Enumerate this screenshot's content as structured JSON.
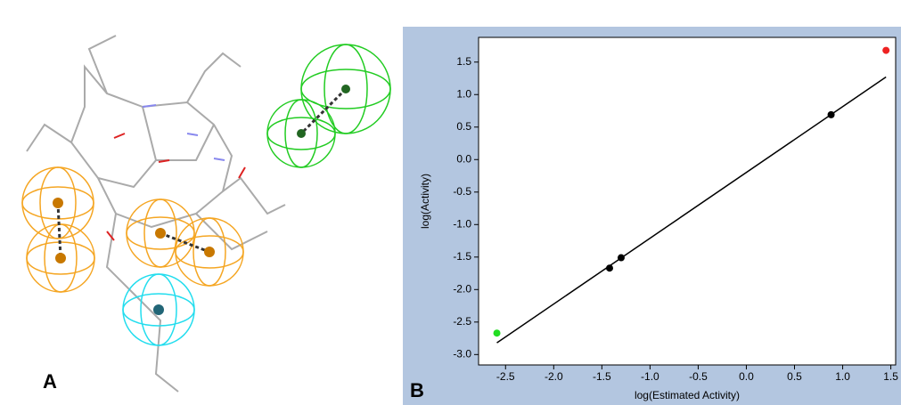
{
  "panel_labels": {
    "a": "A",
    "b": "B"
  },
  "chart_data": {
    "type": "scatter",
    "xlabel": "log(Estimated Activity)",
    "ylabel": "log(Activity)",
    "x": [
      -2.59,
      -1.42,
      -1.3,
      0.88,
      1.45
    ],
    "y": [
      -2.67,
      -1.67,
      -1.51,
      0.69,
      1.68
    ],
    "colors": [
      "#22dd22",
      "#000000",
      "#000000",
      "#000000",
      "#ee2222"
    ],
    "trendline": {
      "x": [
        -2.59,
        1.45
      ],
      "y": [
        -2.82,
        1.27
      ],
      "color": "#000000"
    },
    "xlim": [
      -2.78,
      1.55
    ],
    "ylim": [
      -3.16,
      1.88
    ],
    "xticks": [
      -2.5,
      {
        "value": -2,
        "label": "-2.0"
      },
      -1.5,
      {
        "value": -1,
        "label": "-1.0"
      },
      -0.5,
      {
        "value": 0,
        "label": "0.0"
      },
      0.5,
      {
        "value": 1,
        "label": "1.0"
      },
      1.5
    ],
    "yticks": [
      {
        "value": -3,
        "label": "-3.0"
      },
      -2.5,
      {
        "value": -2,
        "label": "-2.0"
      },
      -1.5,
      {
        "value": -1,
        "label": "-1.0"
      },
      -0.5,
      {
        "value": 0,
        "label": "0.0"
      },
      0.5,
      {
        "value": 1,
        "label": "1.0"
      },
      1.5
    ]
  }
}
